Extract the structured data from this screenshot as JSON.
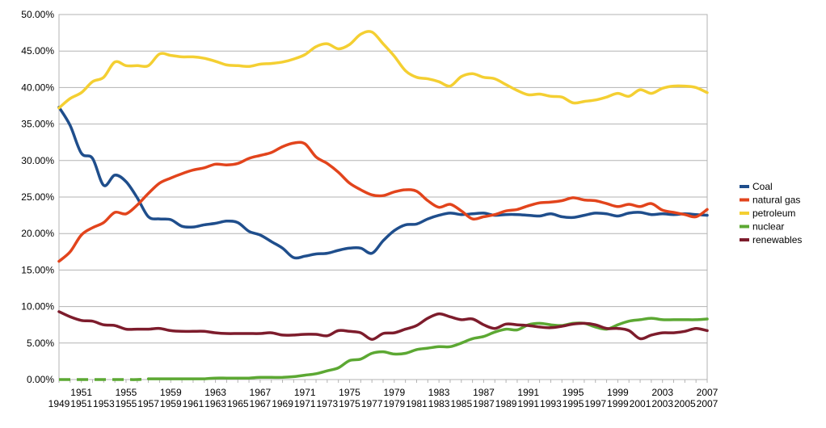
{
  "chart_data": {
    "type": "line",
    "title": "",
    "xlabel": "",
    "ylabel": "",
    "grid": true,
    "legend_position": "right",
    "ylim": [
      0,
      50
    ],
    "yticks": [
      "0.00%",
      "5.00%",
      "10.00%",
      "15.00%",
      "20.00%",
      "25.00%",
      "30.00%",
      "35.00%",
      "40.00%",
      "45.00%",
      "50.00%"
    ],
    "xlim": [
      1949,
      2007
    ],
    "xticks_lower": [
      "1949",
      "1951",
      "1953",
      "1955",
      "1957",
      "1959",
      "1961",
      "1963",
      "1965",
      "1967",
      "1969",
      "1971",
      "1973",
      "1975",
      "1977",
      "1979",
      "1981",
      "1983",
      "1985",
      "1987",
      "1989",
      "1991",
      "1993",
      "1995",
      "1997",
      "1999",
      "2001",
      "2003",
      "2005",
      "2007"
    ],
    "xticks_upper": [
      "1951",
      "1955",
      "1959",
      "1963",
      "1967",
      "1971",
      "1975",
      "1979",
      "1983",
      "1987",
      "1991",
      "1995",
      "1999",
      "2003",
      "2007"
    ],
    "x": [
      1949,
      1950,
      1951,
      1952,
      1953,
      1954,
      1955,
      1956,
      1957,
      1958,
      1959,
      1960,
      1961,
      1962,
      1963,
      1964,
      1965,
      1966,
      1967,
      1968,
      1969,
      1970,
      1971,
      1972,
      1973,
      1974,
      1975,
      1976,
      1977,
      1978,
      1979,
      1980,
      1981,
      1982,
      1983,
      1984,
      1985,
      1986,
      1987,
      1988,
      1989,
      1990,
      1991,
      1992,
      1993,
      1994,
      1995,
      1996,
      1997,
      1998,
      1999,
      2000,
      2001,
      2002,
      2003,
      2004,
      2005,
      2006,
      2007
    ],
    "series": [
      {
        "name": "Coal",
        "color": "#1f4e8c",
        "values": [
          37.3,
          34.8,
          31.0,
          30.3,
          26.6,
          28.0,
          27.1,
          24.9,
          22.3,
          22.0,
          21.9,
          21.0,
          20.9,
          21.2,
          21.4,
          21.7,
          21.5,
          20.3,
          19.8,
          18.9,
          18.0,
          16.7,
          16.9,
          17.2,
          17.3,
          17.7,
          18.0,
          18.0,
          17.3,
          19.0,
          20.4,
          21.2,
          21.3,
          22.0,
          22.5,
          22.8,
          22.6,
          22.7,
          22.8,
          22.5,
          22.6,
          22.6,
          22.5,
          22.4,
          22.7,
          22.3,
          22.2,
          22.5,
          22.8,
          22.7,
          22.4,
          22.8,
          22.9,
          22.6,
          22.7,
          22.6,
          22.7,
          22.6,
          22.5
        ]
      },
      {
        "name": "natural gas",
        "color": "#e2441c",
        "values": [
          16.2,
          17.5,
          19.8,
          20.8,
          21.5,
          22.9,
          22.7,
          23.9,
          25.5,
          26.9,
          27.6,
          28.2,
          28.7,
          29.0,
          29.5,
          29.4,
          29.6,
          30.3,
          30.7,
          31.1,
          31.9,
          32.4,
          32.3,
          30.5,
          29.6,
          28.4,
          26.9,
          26.0,
          25.3,
          25.2,
          25.7,
          26.0,
          25.8,
          24.5,
          23.6,
          24.0,
          23.1,
          22.0,
          22.3,
          22.6,
          23.1,
          23.3,
          23.8,
          24.2,
          24.3,
          24.5,
          24.9,
          24.6,
          24.5,
          24.1,
          23.7,
          24.0,
          23.7,
          24.1,
          23.2,
          22.9,
          22.6,
          22.3,
          23.3
        ]
      },
      {
        "name": "petroleum",
        "color": "#f4cf32",
        "values": [
          37.2,
          38.5,
          39.3,
          40.8,
          41.4,
          43.5,
          43.0,
          43.0,
          43.0,
          44.6,
          44.4,
          44.2,
          44.2,
          44.0,
          43.6,
          43.1,
          43.0,
          42.9,
          43.2,
          43.3,
          43.5,
          43.9,
          44.5,
          45.6,
          46.0,
          45.3,
          45.9,
          47.3,
          47.6,
          46.0,
          44.3,
          42.3,
          41.4,
          41.2,
          40.8,
          40.2,
          41.5,
          41.9,
          41.4,
          41.2,
          40.4,
          39.6,
          39.0,
          39.1,
          38.8,
          38.7,
          37.9,
          38.1,
          38.3,
          38.7,
          39.2,
          38.8,
          39.7,
          39.2,
          39.9,
          40.2,
          40.2,
          40.0,
          39.3
        ]
      },
      {
        "name": "nuclear",
        "color": "#5ca833",
        "values": [
          0,
          0,
          0,
          0,
          0,
          0,
          0,
          0,
          0.1,
          0.1,
          0.1,
          0.1,
          0.1,
          0.1,
          0.2,
          0.2,
          0.2,
          0.2,
          0.3,
          0.3,
          0.3,
          0.4,
          0.6,
          0.8,
          1.2,
          1.6,
          2.6,
          2.8,
          3.6,
          3.8,
          3.5,
          3.6,
          4.1,
          4.3,
          4.5,
          4.5,
          5.0,
          5.6,
          5.9,
          6.5,
          6.9,
          6.8,
          7.5,
          7.7,
          7.5,
          7.4,
          7.7,
          7.7,
          7.2,
          6.9,
          7.5,
          8.0,
          8.2,
          8.4,
          8.2,
          8.2,
          8.2,
          8.2,
          8.3
        ]
      },
      {
        "name": "renewables",
        "color": "#7d1c2c",
        "values": [
          9.3,
          8.6,
          8.1,
          8.0,
          7.5,
          7.4,
          6.9,
          6.9,
          6.9,
          7.0,
          6.7,
          6.6,
          6.6,
          6.6,
          6.4,
          6.3,
          6.3,
          6.3,
          6.3,
          6.4,
          6.1,
          6.1,
          6.2,
          6.2,
          6.0,
          6.7,
          6.6,
          6.4,
          5.5,
          6.3,
          6.4,
          6.9,
          7.4,
          8.4,
          9.0,
          8.6,
          8.2,
          8.3,
          7.5,
          7.0,
          7.6,
          7.5,
          7.4,
          7.2,
          7.1,
          7.3,
          7.6,
          7.7,
          7.5,
          7.0,
          7.0,
          6.7,
          5.6,
          6.1,
          6.4,
          6.4,
          6.6,
          7.0,
          6.7
        ]
      }
    ]
  }
}
